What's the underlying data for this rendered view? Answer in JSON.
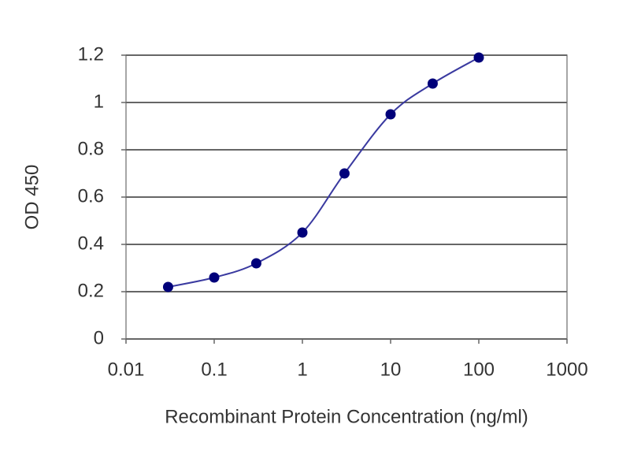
{
  "chart_data": {
    "type": "line",
    "x_label": "Recombinant Protein Concentration (ng/ml)",
    "y_label": "OD 450",
    "x": [
      0.03,
      0.1,
      0.3,
      1,
      3,
      10,
      30,
      100
    ],
    "series": [
      {
        "color": "#00007a",
        "values": [
          0.22,
          0.26,
          0.32,
          0.45,
          0.7,
          0.95,
          1.08,
          1.19
        ]
      }
    ],
    "x_scale": "log",
    "xlim": [
      0.01,
      1000
    ],
    "xticks": [
      0.01,
      0.1,
      1,
      10,
      100,
      1000
    ],
    "ylim": [
      0,
      1.2
    ],
    "yticks": [
      0,
      0.2,
      0.4,
      0.6,
      0.8,
      1,
      1.2
    ],
    "grid": true
  }
}
